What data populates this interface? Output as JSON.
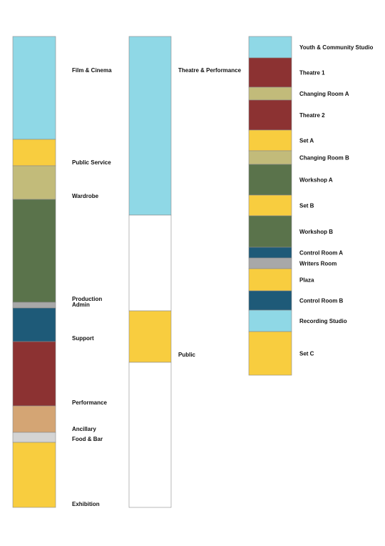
{
  "colors": {
    "cyan": "#8fd8e6",
    "yellow": "#f8cd3f",
    "khaki": "#c2bb7a",
    "green": "#5a734b",
    "grey": "#a8a8a8",
    "teal": "#1e5a78",
    "red": "#8c3232",
    "tan": "#d4a574",
    "light_grey": "#d4d4d4",
    "white": "#ffffff",
    "outline": "#8a8a8a"
  },
  "columns": [
    {
      "id": "departments",
      "segments": [
        {
          "label": "Film & Cinema",
          "color": "cyan",
          "share": 144
        },
        {
          "label": "Public Service",
          "color": "yellow",
          "share": 37
        },
        {
          "label": "Wardrobe",
          "color": "khaki",
          "share": 47
        },
        {
          "label": "Production",
          "color": "green",
          "share": 144
        },
        {
          "label": "Admin",
          "color": "grey",
          "share": 8
        },
        {
          "label": "Support",
          "color": "teal",
          "share": 47
        },
        {
          "label": "Performance",
          "color": "red",
          "share": 90
        },
        {
          "label": "Ancillary",
          "color": "tan",
          "share": 37
        },
        {
          "label": "Food & Bar",
          "color": "light_grey",
          "share": 14
        },
        {
          "label": "Exhibition",
          "color": "yellow",
          "share": 91
        }
      ]
    },
    {
      "id": "zones",
      "segments": [
        {
          "label": "Theatre & Performance",
          "color": "cyan",
          "share": 250
        },
        {
          "label": "",
          "color": "white",
          "share": 134
        },
        {
          "label": "Public",
          "color": "yellow",
          "share": 72
        },
        {
          "label": "",
          "color": "white",
          "share": 203
        }
      ]
    },
    {
      "id": "rooms",
      "segments": [
        {
          "label": "Youth & Community Studio",
          "color": "cyan",
          "share": 30
        },
        {
          "label": "Theatre 1",
          "color": "red",
          "share": 41
        },
        {
          "label": "Changing Room A",
          "color": "khaki",
          "share": 18
        },
        {
          "label": "Theatre 2",
          "color": "red",
          "share": 42
        },
        {
          "label": "Set A",
          "color": "yellow",
          "share": 29
        },
        {
          "label": "Changing Room B",
          "color": "khaki",
          "share": 19
        },
        {
          "label": "Workshop A",
          "color": "green",
          "share": 43
        },
        {
          "label": "Set B",
          "color": "yellow",
          "share": 29
        },
        {
          "label": "Workshop B",
          "color": "green",
          "share": 44
        },
        {
          "label": "Control Room A",
          "color": "teal",
          "share": 15
        },
        {
          "label": "Writers Room",
          "color": "grey",
          "share": 15
        },
        {
          "label": "Plaza",
          "color": "yellow",
          "share": 31
        },
        {
          "label": "Control Room B",
          "color": "teal",
          "share": 27
        },
        {
          "label": "Recording Studio",
          "color": "cyan",
          "share": 30
        },
        {
          "label": "Set C",
          "color": "yellow",
          "share": 61
        }
      ]
    }
  ]
}
